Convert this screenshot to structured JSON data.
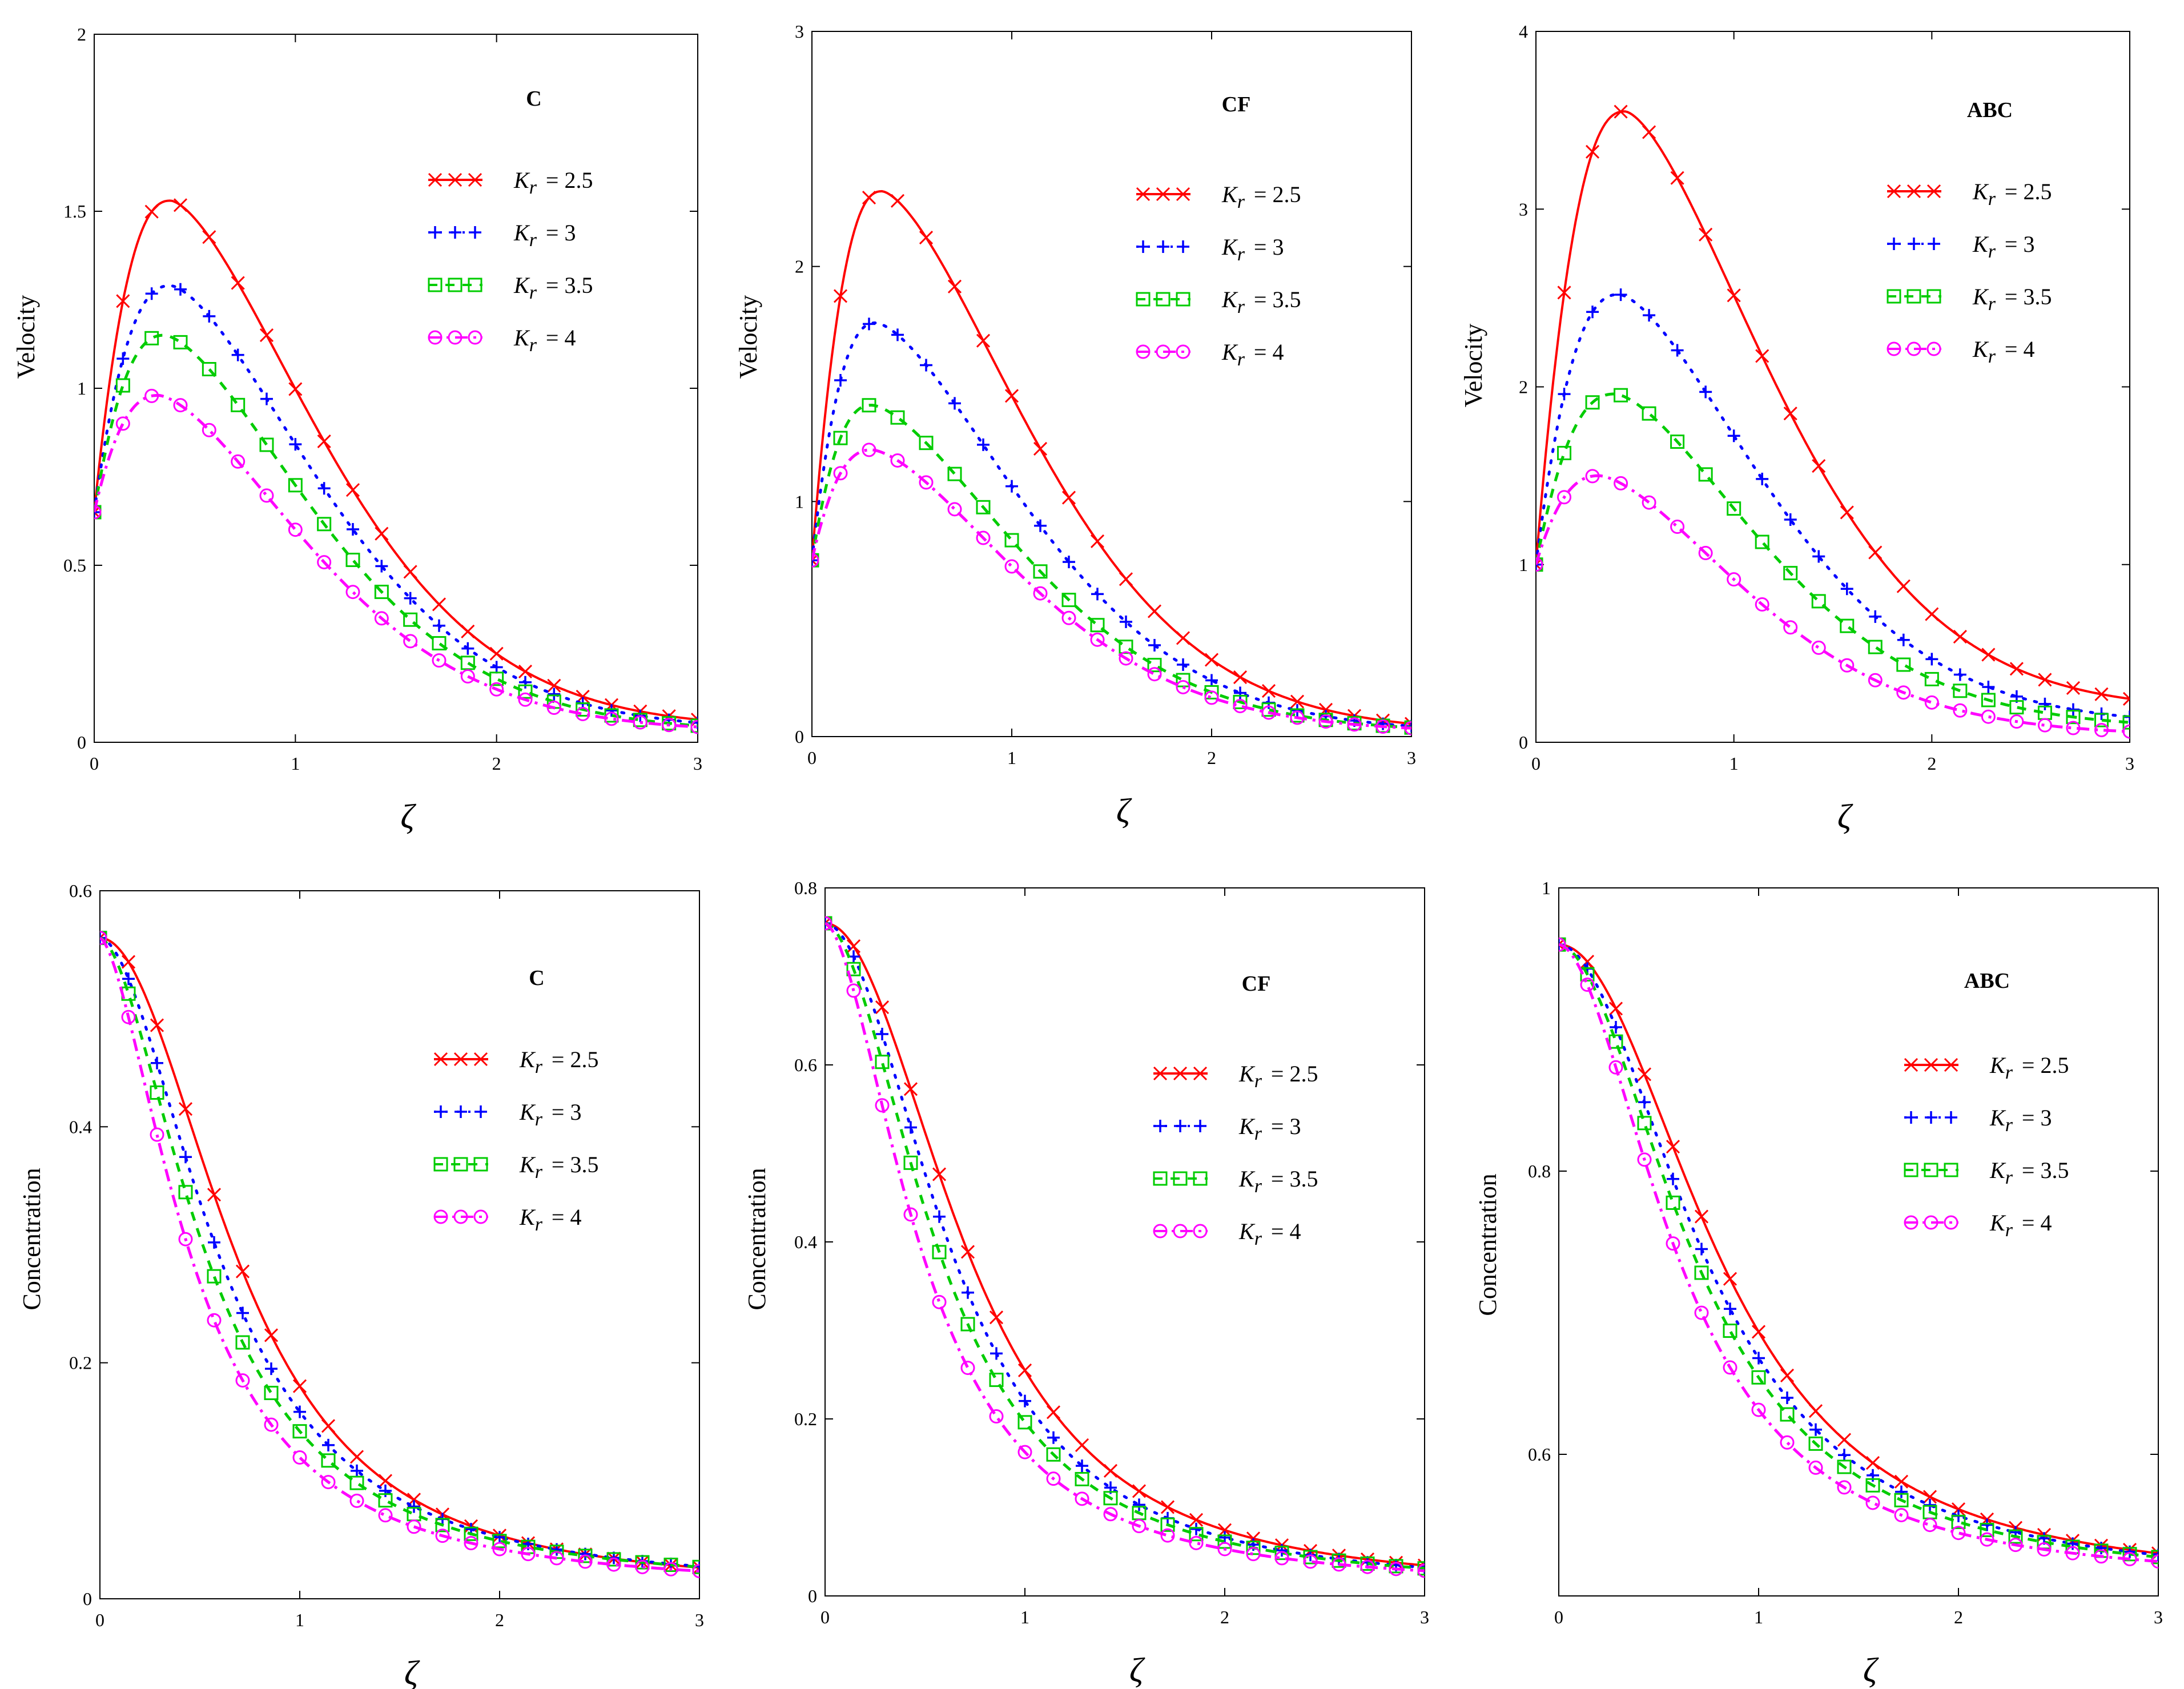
{
  "chart_data": [
    {
      "type": "line",
      "title": "C",
      "xlabel": "ζ",
      "ylabel": "Velocity",
      "xlim": [
        0,
        3
      ],
      "ylim": [
        0,
        2
      ],
      "xticks": [
        "0",
        "1",
        "2",
        "3"
      ],
      "yticks": [
        "0",
        "0.5",
        "1",
        "1.5",
        "2"
      ],
      "kind": "velocity",
      "y0": 0.65,
      "series": [
        {
          "name": "K_r = 2.5",
          "peak": 1.53,
          "peak_x": 0.38,
          "y_at_3": 0.04
        },
        {
          "name": "K_r = 3",
          "peak": 1.29,
          "peak_x": 0.38,
          "y_at_3": 0.035
        },
        {
          "name": "K_r = 3.5",
          "peak": 1.15,
          "peak_x": 0.35,
          "y_at_3": 0.03
        },
        {
          "name": "K_r = 4",
          "peak": 0.98,
          "peak_x": 0.32,
          "y_at_3": 0.03
        }
      ]
    },
    {
      "type": "line",
      "title": "CF",
      "xlabel": "ζ",
      "ylabel": "Velocity",
      "xlim": [
        0,
        3
      ],
      "ylim": [
        0,
        3
      ],
      "xticks": [
        "0",
        "1",
        "2",
        "3"
      ],
      "yticks": [
        "0",
        "1",
        "2",
        "3"
      ],
      "kind": "velocity",
      "y0": 0.75,
      "series": [
        {
          "name": "K_r = 2.5",
          "peak": 2.32,
          "peak_x": 0.35,
          "y_at_3": 0.02
        },
        {
          "name": "K_r = 3",
          "peak": 1.76,
          "peak_x": 0.32,
          "y_at_3": 0.02
        },
        {
          "name": "K_r = 3.5",
          "peak": 1.41,
          "peak_x": 0.3,
          "y_at_3": 0.02
        },
        {
          "name": "K_r = 4",
          "peak": 1.22,
          "peak_x": 0.3,
          "y_at_3": 0.02
        }
      ]
    },
    {
      "type": "line",
      "title": "ABC",
      "xlabel": "ζ",
      "ylabel": "Velocity",
      "xlim": [
        0,
        3
      ],
      "ylim": [
        0,
        4
      ],
      "xticks": [
        "0",
        "1",
        "2",
        "3"
      ],
      "yticks": [
        "0",
        "1",
        "2",
        "3",
        "4"
      ],
      "kind": "velocity",
      "y0": 1.0,
      "series": [
        {
          "name": "K_r = 2.5",
          "peak": 3.55,
          "peak_x": 0.45,
          "y_at_3": 0.18
        },
        {
          "name": "K_r = 3",
          "peak": 2.52,
          "peak_x": 0.42,
          "y_at_3": 0.1
        },
        {
          "name": "K_r = 3.5",
          "peak": 1.96,
          "peak_x": 0.4,
          "y_at_3": 0.08
        },
        {
          "name": "K_r = 4",
          "peak": 1.5,
          "peak_x": 0.32,
          "y_at_3": 0.04
        }
      ]
    },
    {
      "type": "line",
      "title": "C",
      "xlabel": "ζ",
      "ylabel": "Concentration",
      "xlim": [
        0,
        3
      ],
      "ylim": [
        0,
        0.6
      ],
      "xticks": [
        "0",
        "1",
        "2",
        "3"
      ],
      "yticks": [
        "0",
        "0.2",
        "0.4",
        "0.6"
      ],
      "kind": "concentration",
      "y0": 0.56,
      "series": [
        {
          "name": "K_r = 2.5",
          "half_x": 0.85,
          "power": 2.0,
          "y_at_3": 0.01
        },
        {
          "name": "K_r = 3",
          "half_x": 0.76,
          "power": 1.8,
          "y_at_3": 0.01
        },
        {
          "name": "K_r = 3.5",
          "half_x": 0.69,
          "power": 1.7,
          "y_at_3": 0.01
        },
        {
          "name": "K_r = 4",
          "half_x": 0.6,
          "power": 1.6,
          "y_at_3": 0.008
        }
      ]
    },
    {
      "type": "line",
      "title": "CF",
      "xlabel": "ζ",
      "ylabel": "Concentration",
      "xlim": [
        0,
        3
      ],
      "ylim": [
        0,
        0.8
      ],
      "xticks": [
        "0",
        "1",
        "2",
        "3"
      ],
      "yticks": [
        "0",
        "0.2",
        "0.4",
        "0.6",
        "0.8"
      ],
      "kind": "concentration",
      "y0": 0.76,
      "series": [
        {
          "name": "K_r = 2.5",
          "half_x": 0.88,
          "power": 2.0,
          "y_at_3": 0.01
        },
        {
          "name": "K_r = 3",
          "half_x": 0.79,
          "power": 1.9,
          "y_at_3": 0.01
        },
        {
          "name": "K_r = 3.5",
          "half_x": 0.72,
          "power": 1.8,
          "y_at_3": 0.01
        },
        {
          "name": "K_r = 4",
          "half_x": 0.62,
          "power": 1.7,
          "y_at_3": 0.01
        }
      ]
    },
    {
      "type": "line",
      "title": "ABC",
      "xlabel": "ζ",
      "ylabel": "Concentration",
      "xlim": [
        0,
        3
      ],
      "ylim": [
        0.5,
        1
      ],
      "xticks": [
        "0",
        "1",
        "2",
        "3"
      ],
      "yticks": [
        "0.6",
        "0.8",
        "1"
      ],
      "kind": "concentration",
      "y0": 0.96,
      "series": [
        {
          "name": "K_r = 2.5",
          "half_x": 1.0,
          "power": 2.0,
          "y_at_3": 0.51
        },
        {
          "name": "K_r = 3",
          "half_x": 0.92,
          "power": 1.9,
          "y_at_3": 0.51
        },
        {
          "name": "K_r = 3.5",
          "half_x": 0.86,
          "power": 1.85,
          "y_at_3": 0.51
        },
        {
          "name": "K_r = 4",
          "half_x": 0.76,
          "power": 1.8,
          "y_at_3": 0.51
        }
      ]
    }
  ],
  "legend": {
    "symbol": "K",
    "subscript": "r",
    "values": [
      "= 2.5",
      "= 3",
      "= 3.5",
      "= 4"
    ]
  },
  "colors": {
    "s0": "#ff0000",
    "s1": "#0000ff",
    "s2": "#00cc00",
    "s3": "#ff00ff",
    "axis": "#000000"
  }
}
